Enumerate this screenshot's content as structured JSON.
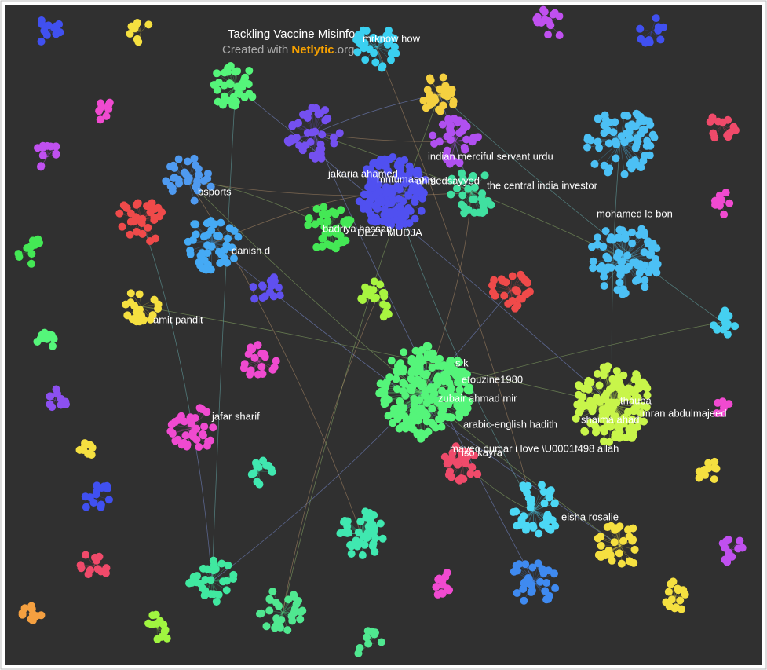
{
  "header": {
    "title": "Tackling Vaccine Misinfo",
    "credit": "Created with",
    "brand": "Netlytic",
    "suffix": ".org"
  },
  "labels": [
    "mrknow how",
    "indian merciful servant urdu",
    "jakaria ahamed",
    "mntumasong",
    "ahmedsayyed",
    "the central india investor",
    "bsports",
    "mohamed le bon",
    "badriya hassan",
    "DEZY MUDJA",
    "danish d",
    "amit pandit",
    "s k",
    "etouzine1980",
    "zubair ahmad mir",
    "thauba",
    "imran abdulmajeed",
    "jafar sharif",
    "shaima ahad",
    "arabic-english hadith",
    "mayeo dumar i love \\U0001f498 allah",
    "iso kayra",
    "eisha rosalie"
  ]
}
